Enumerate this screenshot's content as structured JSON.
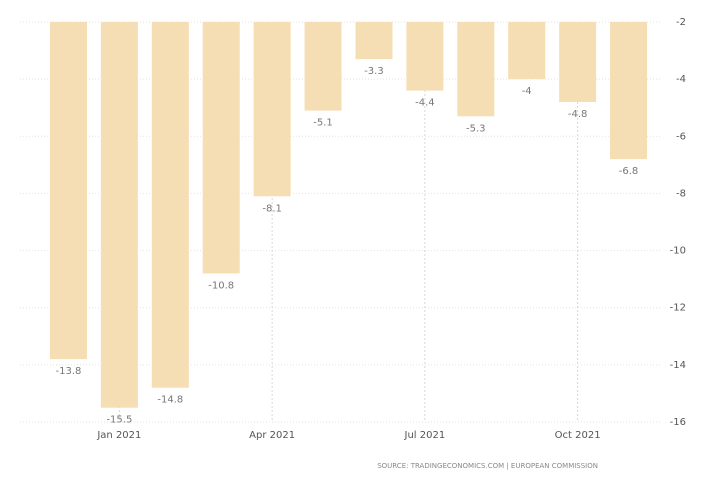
{
  "chart_data": {
    "type": "bar",
    "categories": [
      null,
      "Jan 2021",
      null,
      null,
      "Apr 2021",
      null,
      null,
      "Jul 2021",
      null,
      null,
      "Oct 2021",
      null
    ],
    "values": [
      -13.8,
      -15.5,
      -14.8,
      -10.8,
      -8.1,
      -5.1,
      -3.3,
      -4.4,
      -5.3,
      -4,
      -4.8,
      -6.8
    ],
    "color": "#f5deb3",
    "ylim": [
      -16,
      -2
    ],
    "yticks": [
      -2,
      -4,
      -6,
      -8,
      -10,
      -12,
      -14,
      -16
    ],
    "grid": true,
    "source": "SOURCE: TRADINGECONOMICS.COM | EUROPEAN COMMISSION"
  }
}
